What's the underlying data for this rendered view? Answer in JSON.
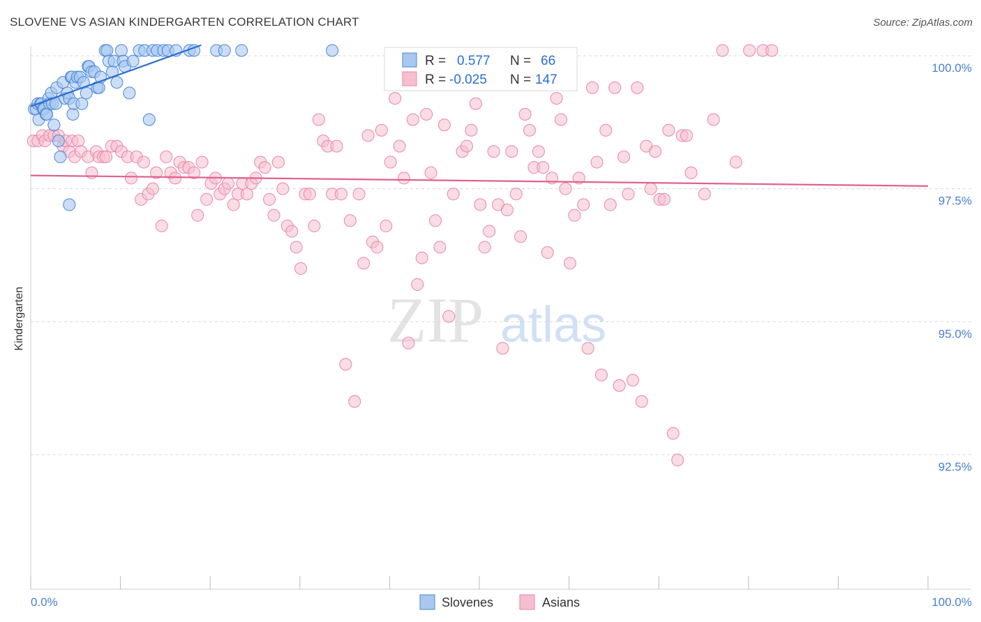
{
  "title": "SLOVENE VS ASIAN KINDERGARTEN CORRELATION CHART",
  "source": "Source: ZipAtlas.com",
  "watermark": {
    "zip": "ZIP",
    "atlas": "atlas"
  },
  "colors": {
    "slovenes_fill": "#a9c8f0",
    "slovenes_stroke": "#4a86d8",
    "slovenes_line": "#2a6fd0",
    "asians_fill": "#f6bfd0",
    "asians_stroke": "#e886a8",
    "asians_line": "#e0628c",
    "tick_text": "#4a7fd0",
    "grid": "#d8d8d8"
  },
  "legend": {
    "r_label": "R =",
    "n_label": "N =",
    "slovenes": {
      "r": "0.577",
      "n": "66"
    },
    "asians": {
      "r": "-0.025",
      "n": "147"
    }
  },
  "bottom_legend": {
    "slovenes": "Slovenes",
    "asians": "Asians"
  },
  "chart_data": {
    "type": "scatter",
    "title": "SLOVENE VS ASIAN KINDERGARTEN CORRELATION CHART",
    "xlabel": "",
    "ylabel": "Kindergarten",
    "xlim": [
      0,
      100
    ],
    "ylim": [
      90,
      100.8
    ],
    "x_tick_labels": [
      "0.0%",
      "100.0%"
    ],
    "y_tick_labels": [
      "100.0%",
      "97.5%",
      "95.0%",
      "92.5%"
    ],
    "y_ticks": [
      100,
      97.5,
      95,
      92.5
    ],
    "grid": true,
    "legend_position": "top-center",
    "series": [
      {
        "name": "Slovenes",
        "r": 0.577,
        "n": 66,
        "trend": [
          [
            0,
            99.05
          ],
          [
            19,
            100.2
          ]
        ],
        "points": [
          [
            0.4,
            99
          ],
          [
            0.6,
            99
          ],
          [
            0.8,
            99.1
          ],
          [
            0.9,
            98.8
          ],
          [
            1.1,
            99.1
          ],
          [
            1.2,
            99.1
          ],
          [
            1.4,
            99
          ],
          [
            1.5,
            99
          ],
          [
            1.7,
            98.9
          ],
          [
            1.8,
            98.9
          ],
          [
            2,
            99.2
          ],
          [
            2.1,
            99.1
          ],
          [
            2.3,
            99.3
          ],
          [
            2.4,
            99.1
          ],
          [
            2.6,
            98.7
          ],
          [
            2.8,
            99.1
          ],
          [
            2.9,
            99.4
          ],
          [
            3.1,
            98.4
          ],
          [
            3.3,
            98.1
          ],
          [
            3.6,
            99.5
          ],
          [
            3.8,
            99.2
          ],
          [
            4.1,
            99.3
          ],
          [
            4.3,
            99.2
          ],
          [
            4.5,
            99.6
          ],
          [
            4.6,
            99.6
          ],
          [
            4.7,
            98.9
          ],
          [
            4.8,
            99.1
          ],
          [
            5.0,
            99.5
          ],
          [
            5.2,
            99.6
          ],
          [
            5.5,
            99.6
          ],
          [
            5.7,
            99.1
          ],
          [
            5.9,
            99.5
          ],
          [
            6.2,
            99.3
          ],
          [
            6.4,
            99.8
          ],
          [
            6.5,
            99.8
          ],
          [
            6.8,
            99.7
          ],
          [
            7.1,
            99.7
          ],
          [
            7.4,
            99.4
          ],
          [
            7.6,
            99.4
          ],
          [
            7.8,
            99.6
          ],
          [
            8.3,
            100.1
          ],
          [
            8.5,
            100.1
          ],
          [
            8.7,
            99.9
          ],
          [
            9.1,
            99.7
          ],
          [
            9.3,
            99.9
          ],
          [
            9.6,
            99.5
          ],
          [
            10.1,
            100.1
          ],
          [
            10.3,
            99.9
          ],
          [
            10.5,
            99.8
          ],
          [
            11.0,
            99.3
          ],
          [
            11.4,
            99.9
          ],
          [
            12.1,
            100.1
          ],
          [
            12.7,
            100.1
          ],
          [
            13.2,
            98.8
          ],
          [
            13.6,
            100.1
          ],
          [
            14.1,
            100.1
          ],
          [
            14.8,
            100.1
          ],
          [
            15.3,
            100.1
          ],
          [
            16.2,
            100.1
          ],
          [
            17.7,
            100.1
          ],
          [
            18.2,
            100.1
          ],
          [
            20.7,
            100.1
          ],
          [
            21.6,
            100.1
          ],
          [
            23.5,
            100.1
          ],
          [
            33.6,
            100.1
          ],
          [
            4.3,
            97.2
          ]
        ]
      },
      {
        "name": "Asians",
        "r": -0.025,
        "n": 147,
        "trend": [
          [
            0,
            97.75
          ],
          [
            100,
            97.55
          ]
        ],
        "points": [
          [
            0.3,
            98.4
          ],
          [
            0.8,
            98.4
          ],
          [
            1.3,
            98.5
          ],
          [
            1.6,
            98.4
          ],
          [
            2.1,
            98.5
          ],
          [
            2.6,
            98.5
          ],
          [
            3.1,
            98.5
          ],
          [
            3.6,
            98.3
          ],
          [
            3.9,
            98.4
          ],
          [
            4.3,
            98.2
          ],
          [
            4.6,
            98.4
          ],
          [
            4.9,
            98.1
          ],
          [
            5.3,
            98.4
          ],
          [
            5.6,
            98.2
          ],
          [
            6.4,
            98.1
          ],
          [
            6.8,
            97.8
          ],
          [
            7.3,
            98.2
          ],
          [
            7.6,
            98.1
          ],
          [
            8.1,
            98.1
          ],
          [
            8.4,
            98.1
          ],
          [
            9.0,
            98.3
          ],
          [
            9.6,
            98.3
          ],
          [
            10.1,
            98.2
          ],
          [
            10.8,
            98.1
          ],
          [
            11.2,
            97.7
          ],
          [
            11.8,
            98.1
          ],
          [
            12.3,
            97.3
          ],
          [
            12.6,
            98.0
          ],
          [
            13.1,
            97.4
          ],
          [
            13.6,
            97.5
          ],
          [
            14.0,
            97.8
          ],
          [
            14.6,
            96.8
          ],
          [
            15.1,
            98.1
          ],
          [
            15.6,
            97.8
          ],
          [
            16.1,
            97.7
          ],
          [
            16.6,
            98.0
          ],
          [
            17.1,
            97.9
          ],
          [
            17.6,
            97.9
          ],
          [
            18.2,
            97.8
          ],
          [
            18.6,
            97.0
          ],
          [
            19.1,
            98.0
          ],
          [
            19.6,
            97.3
          ],
          [
            20.1,
            97.6
          ],
          [
            20.6,
            97.7
          ],
          [
            21.1,
            97.4
          ],
          [
            21.6,
            97.5
          ],
          [
            22.0,
            97.6
          ],
          [
            22.6,
            97.2
          ],
          [
            23.1,
            97.4
          ],
          [
            23.6,
            97.6
          ],
          [
            24.1,
            97.4
          ],
          [
            24.6,
            97.6
          ],
          [
            25.1,
            97.7
          ],
          [
            25.6,
            98.0
          ],
          [
            26.1,
            97.9
          ],
          [
            26.6,
            97.3
          ],
          [
            27.1,
            97.0
          ],
          [
            27.6,
            98.0
          ],
          [
            28.1,
            97.5
          ],
          [
            28.6,
            96.8
          ],
          [
            29.1,
            96.7
          ],
          [
            29.6,
            96.4
          ],
          [
            30.1,
            96.0
          ],
          [
            30.6,
            97.4
          ],
          [
            31.1,
            97.4
          ],
          [
            31.6,
            96.8
          ],
          [
            32.1,
            98.8
          ],
          [
            32.6,
            98.4
          ],
          [
            33.1,
            98.3
          ],
          [
            33.6,
            97.4
          ],
          [
            34.1,
            98.3
          ],
          [
            34.6,
            97.4
          ],
          [
            35.1,
            94.2
          ],
          [
            35.6,
            96.9
          ],
          [
            36.1,
            93.5
          ],
          [
            36.6,
            97.4
          ],
          [
            37.1,
            96.1
          ],
          [
            37.6,
            98.5
          ],
          [
            38.1,
            96.5
          ],
          [
            38.6,
            96.4
          ],
          [
            39.1,
            98.6
          ],
          [
            39.6,
            96.8
          ],
          [
            40.1,
            98.0
          ],
          [
            40.6,
            99.2
          ],
          [
            41.1,
            98.3
          ],
          [
            41.6,
            97.7
          ],
          [
            42.1,
            94.6
          ],
          [
            42.6,
            98.8
          ],
          [
            43.1,
            95.7
          ],
          [
            43.6,
            96.2
          ],
          [
            44.1,
            98.9
          ],
          [
            44.6,
            97.8
          ],
          [
            45.1,
            96.9
          ],
          [
            45.6,
            96.4
          ],
          [
            46.1,
            98.7
          ],
          [
            46.6,
            95.1
          ],
          [
            47.1,
            97.4
          ],
          [
            47.6,
            99.9
          ],
          [
            48.1,
            98.2
          ],
          [
            48.6,
            98.3
          ],
          [
            49.1,
            98.6
          ],
          [
            49.6,
            99.1
          ],
          [
            50.1,
            97.2
          ],
          [
            50.6,
            96.4
          ],
          [
            51.1,
            96.7
          ],
          [
            51.6,
            98.2
          ],
          [
            52.1,
            97.2
          ],
          [
            52.6,
            94.5
          ],
          [
            53.1,
            97.1
          ],
          [
            53.6,
            98.2
          ],
          [
            54.1,
            97.4
          ],
          [
            54.6,
            96.6
          ],
          [
            55.1,
            98.9
          ],
          [
            55.6,
            98.6
          ],
          [
            56.1,
            97.9
          ],
          [
            56.6,
            98.2
          ],
          [
            57.1,
            97.9
          ],
          [
            57.6,
            96.3
          ],
          [
            58.1,
            97.7
          ],
          [
            58.6,
            99.2
          ],
          [
            59.1,
            98.8
          ],
          [
            59.6,
            97.5
          ],
          [
            60.1,
            96.1
          ],
          [
            60.6,
            97.0
          ],
          [
            61.1,
            97.7
          ],
          [
            61.6,
            97.2
          ],
          [
            62.1,
            94.5
          ],
          [
            62.6,
            99.4
          ],
          [
            63.1,
            98.0
          ],
          [
            63.6,
            94.0
          ],
          [
            64.1,
            98.6
          ],
          [
            64.6,
            97.2
          ],
          [
            65.1,
            99.4
          ],
          [
            65.6,
            93.8
          ],
          [
            66.1,
            98.1
          ],
          [
            66.6,
            97.4
          ],
          [
            67.1,
            93.9
          ],
          [
            67.6,
            99.4
          ],
          [
            68.1,
            93.5
          ],
          [
            68.6,
            98.3
          ],
          [
            69.1,
            97.5
          ],
          [
            69.6,
            98.2
          ],
          [
            70.1,
            97.3
          ],
          [
            70.6,
            97.3
          ],
          [
            71.1,
            98.6
          ],
          [
            71.6,
            92.9
          ],
          [
            72.1,
            92.4
          ],
          [
            72.6,
            98.5
          ],
          [
            73.1,
            98.5
          ],
          [
            73.6,
            97.8
          ],
          [
            75.1,
            97.4
          ],
          [
            76.1,
            98.8
          ],
          [
            77.1,
            100.1
          ],
          [
            78.6,
            98.0
          ],
          [
            80.1,
            100.1
          ],
          [
            81.6,
            100.1
          ],
          [
            82.6,
            100.1
          ]
        ]
      }
    ]
  }
}
